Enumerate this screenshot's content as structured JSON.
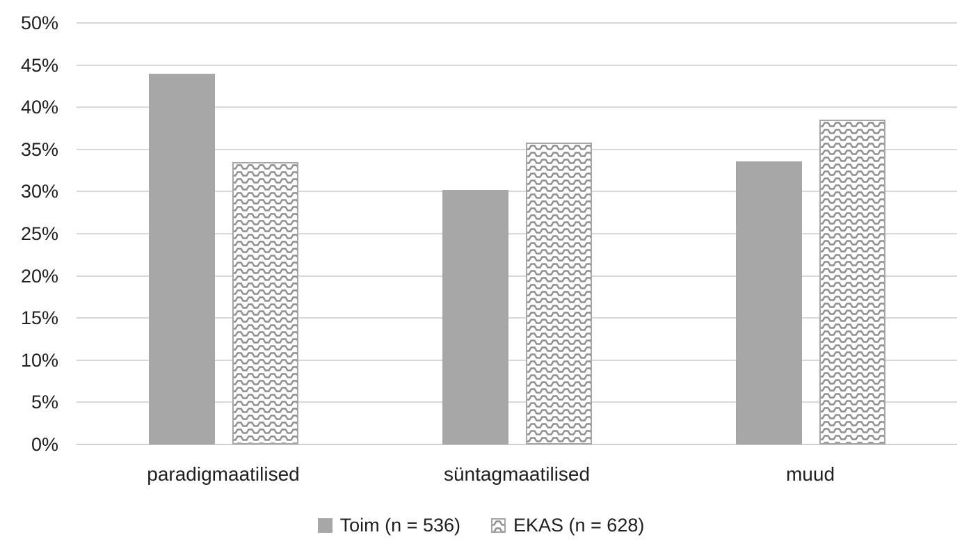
{
  "chart_data": {
    "type": "bar",
    "categories": [
      "paradigmaatilised",
      "süntagmaatilised",
      "muud"
    ],
    "series": [
      {
        "key": "toim",
        "name": "Toim (n = 536)",
        "fill_style": "solid",
        "values": [
          44.0,
          30.2,
          33.6
        ]
      },
      {
        "key": "ekas",
        "name": "EKAS (n = 628)",
        "fill_style": "wave-pattern",
        "values": [
          33.5,
          35.8,
          38.5
        ]
      }
    ],
    "title": "",
    "xlabel": "",
    "ylabel": "",
    "ylim": [
      0,
      50
    ],
    "ytick_step": 5,
    "ytick_labels": [
      "0%",
      "5%",
      "10%",
      "15%",
      "20%",
      "25%",
      "30%",
      "35%",
      "40%",
      "45%",
      "50%"
    ],
    "grid": true,
    "legend_position": "bottom"
  },
  "colors": {
    "solid_bar": "#a7a7a7",
    "pattern_stroke": "#8f8f8f",
    "pattern_border": "#a6a6a6",
    "pattern_background": "#ffffff",
    "gridline": "#d9d9d9",
    "baseline": "#d0d0d0",
    "text": "#1f1f1f",
    "background": "#ffffff"
  }
}
